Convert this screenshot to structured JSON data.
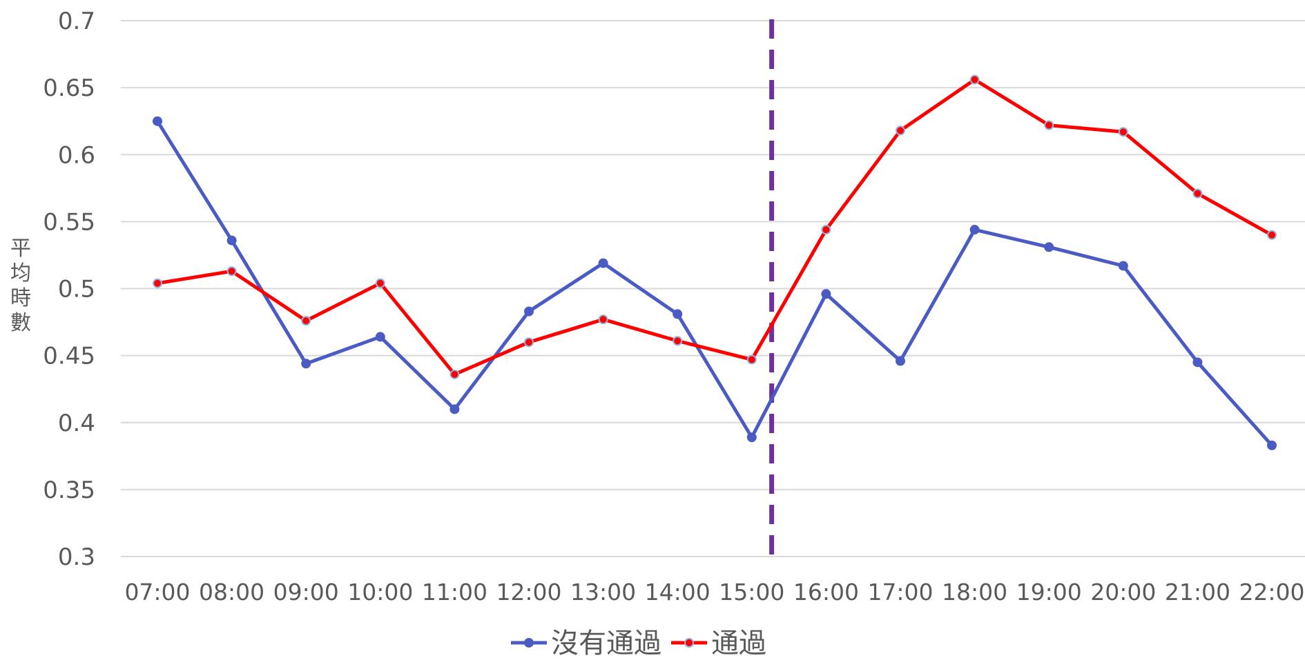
{
  "chart_data": {
    "type": "line",
    "title": "",
    "xlabel": "",
    "ylabel": "平均時數",
    "categories": [
      "07:00",
      "08:00",
      "09:00",
      "10:00",
      "11:00",
      "12:00",
      "13:00",
      "14:00",
      "15:00",
      "16:00",
      "17:00",
      "18:00",
      "19:00",
      "20:00",
      "21:00",
      "22:00"
    ],
    "ylim": [
      0.3,
      0.7
    ],
    "yticks": [
      "0.7",
      "0.65",
      "0.6",
      "0.55",
      "0.5",
      "0.45",
      "0.4",
      "0.35",
      "0.3"
    ],
    "grid": true,
    "legend_position": "bottom",
    "series": [
      {
        "name": "沒有通過",
        "color": "#4a5bc4",
        "values": [
          0.625,
          0.536,
          0.444,
          0.464,
          0.41,
          0.483,
          0.519,
          0.481,
          0.389,
          0.496,
          0.446,
          0.544,
          0.531,
          0.517,
          0.445,
          0.383
        ]
      },
      {
        "name": "通過",
        "color": "#ff0000",
        "values": [
          0.504,
          0.513,
          0.476,
          0.504,
          0.436,
          0.46,
          0.477,
          0.461,
          0.447,
          0.544,
          0.618,
          0.656,
          0.622,
          0.617,
          0.571,
          0.54
        ]
      }
    ],
    "annotations": [
      {
        "type": "vertical-dashed-line",
        "x_between": [
          "15:00",
          "16:00"
        ],
        "color": "#7030a0"
      }
    ]
  }
}
